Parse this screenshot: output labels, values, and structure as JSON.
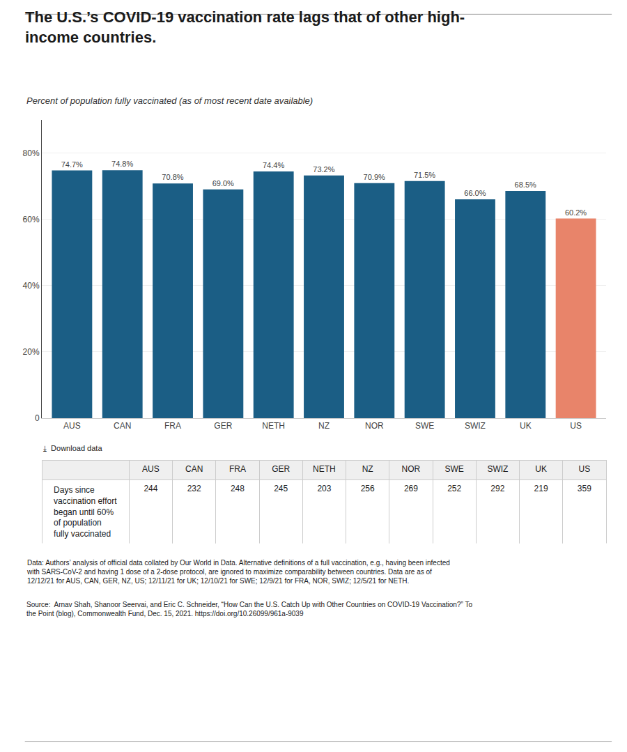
{
  "chart_data": [
    {
      "type": "bar",
      "title": "The U.S.’s COVID-19 vaccination rate lags that of other high-\nincome countries.",
      "subtitle": "Percent of population fully vaccinated (as of most recent date available)",
      "categories": [
        "AUS",
        "CAN",
        "FRA",
        "GER",
        "NETH",
        "NZ",
        "NOR",
        "SWE",
        "SWIZ",
        "UK",
        "US"
      ],
      "values": [
        74.7,
        74.8,
        70.8,
        69.0,
        74.4,
        73.2,
        70.9,
        71.5,
        66.0,
        68.5,
        60.2
      ],
      "value_labels": [
        "74.7%",
        "74.8%",
        "70.8%",
        "69.0%",
        "74.4%",
        "73.2%",
        "70.9%",
        "71.5%",
        "66.0%",
        "68.5%",
        "60.2%"
      ],
      "data_labels": true,
      "colors": [
        "#1b5e85",
        "#1b5e85",
        "#1b5e85",
        "#1b5e85",
        "#1b5e85",
        "#1b5e85",
        "#1b5e85",
        "#1b5e85",
        "#1b5e85",
        "#1b5e85",
        "#e8846a"
      ],
      "ylim": [
        0,
        90
      ],
      "yticks": [
        0,
        {
          "value": 20,
          "label": "20%"
        },
        {
          "value": 40,
          "label": "40%"
        },
        {
          "value": 60,
          "label": "60%"
        },
        {
          "value": 80,
          "label": "80%"
        }
      ],
      "grid": true,
      "annotations": [
        "⤓  Download data",
        "Data: Authors’ analysis of official data collated by Our World in Data. Alternative definitions of a full vaccination, e.g., having been infected\nwith SARS-CoV-2 and having 1 dose of a 2-dose protocol, are ignored to maximize comparability between countries. Data are as of\n12/12/21 for AUS, CAN, GER, NZ, US; 12/11/21 for UK; 12/10/21 for SWE; 12/9/21 for FRA, NOR, SWIZ; 12/5/21 for NETH.",
        "Source:  Arnav Shah, Shanoor Seervai, and Eric C. Schneider, “How Can the U.S. Catch Up with Other Countries on COVID-19 Vaccination?” To\nthe Point (blog), Commonwealth Fund, Dec. 15, 2021. https://doi.org/10.26099/961a-9039"
      ]
    },
    {
      "type": "table",
      "categories": [
        "AUS",
        "CAN",
        "FRA",
        "GER",
        "NETH",
        "NZ",
        "NOR",
        "SWE",
        "SWIZ",
        "UK",
        "US"
      ],
      "series": [
        {
          "name": "Days since\nvaccination effort\nbegan until 60%\nof population\nfully vaccinated",
          "values": [
            244,
            232,
            248,
            245,
            203,
            256,
            269,
            252,
            292,
            219,
            359
          ]
        }
      ]
    }
  ]
}
